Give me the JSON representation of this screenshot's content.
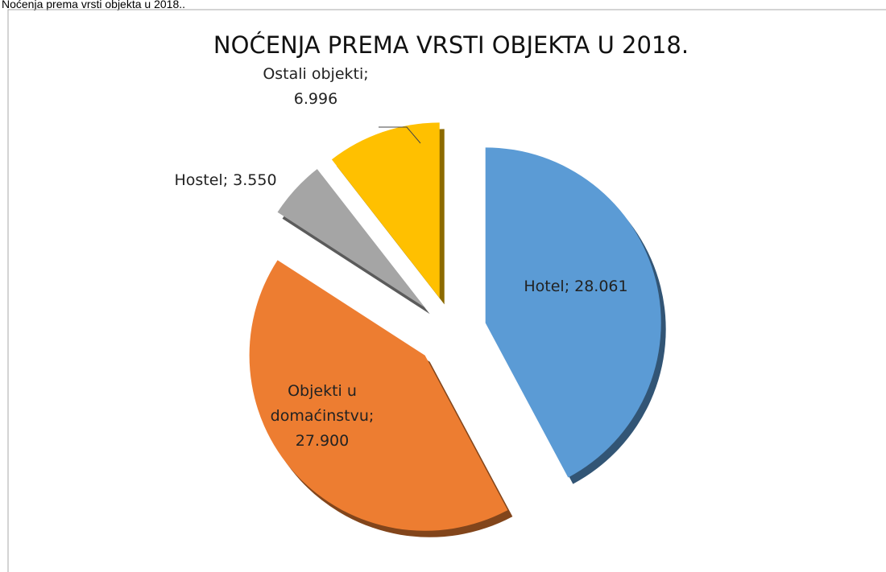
{
  "caption": "Noćenja prema vrsti objekta u 2018..",
  "chart_data": {
    "type": "pie",
    "title": "NOĆENJA PREMA VRSTI OBJEKTA U 2018.",
    "values": [
      28061,
      27900,
      3550,
      6996
    ],
    "value_labels": [
      "Hotel; 28.061",
      "Objekti u domaćinstvu; 27.900",
      "Hostel; 3.550",
      "Ostali objekti; 6.996"
    ],
    "colors": [
      "#5b9bd5",
      "#ed7d31",
      "#a5a5a5",
      "#ffc000"
    ]
  }
}
